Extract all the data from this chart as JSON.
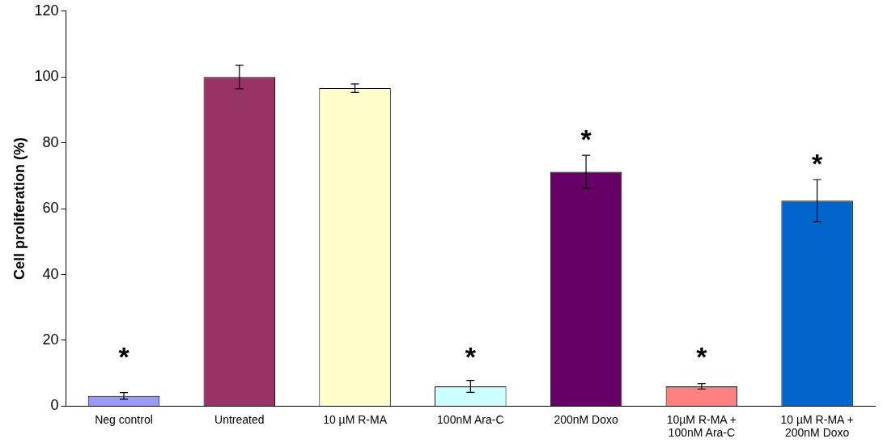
{
  "chart_data": {
    "type": "bar",
    "ylabel": "Cell proliferation (%)",
    "categories": [
      "Neg control",
      "Untreated",
      "10 µM R-MA",
      "100nM Ara-C",
      "200nM Doxo",
      "10µM R-MA +\n100nM Ara-C",
      "10 µM R-MA +\n200nM Doxo"
    ],
    "values": [
      3.1,
      100,
      96.6,
      6,
      71.2,
      6,
      62.4
    ],
    "errors": [
      1,
      3.6,
      1.3,
      1.8,
      5,
      0.8,
      6.4
    ],
    "colors": [
      "#9999ff",
      "#993366",
      "#ffffcc",
      "#ccffff",
      "#660066",
      "#ff8080",
      "#0066cc"
    ],
    "value_labels": [
      "*",
      null,
      null,
      "*",
      "*",
      "*",
      "*"
    ],
    "ylim": [
      0,
      120
    ],
    "yticks": [
      0,
      20,
      40,
      60,
      80,
      100,
      120
    ],
    "grid": false,
    "legend": false
  }
}
